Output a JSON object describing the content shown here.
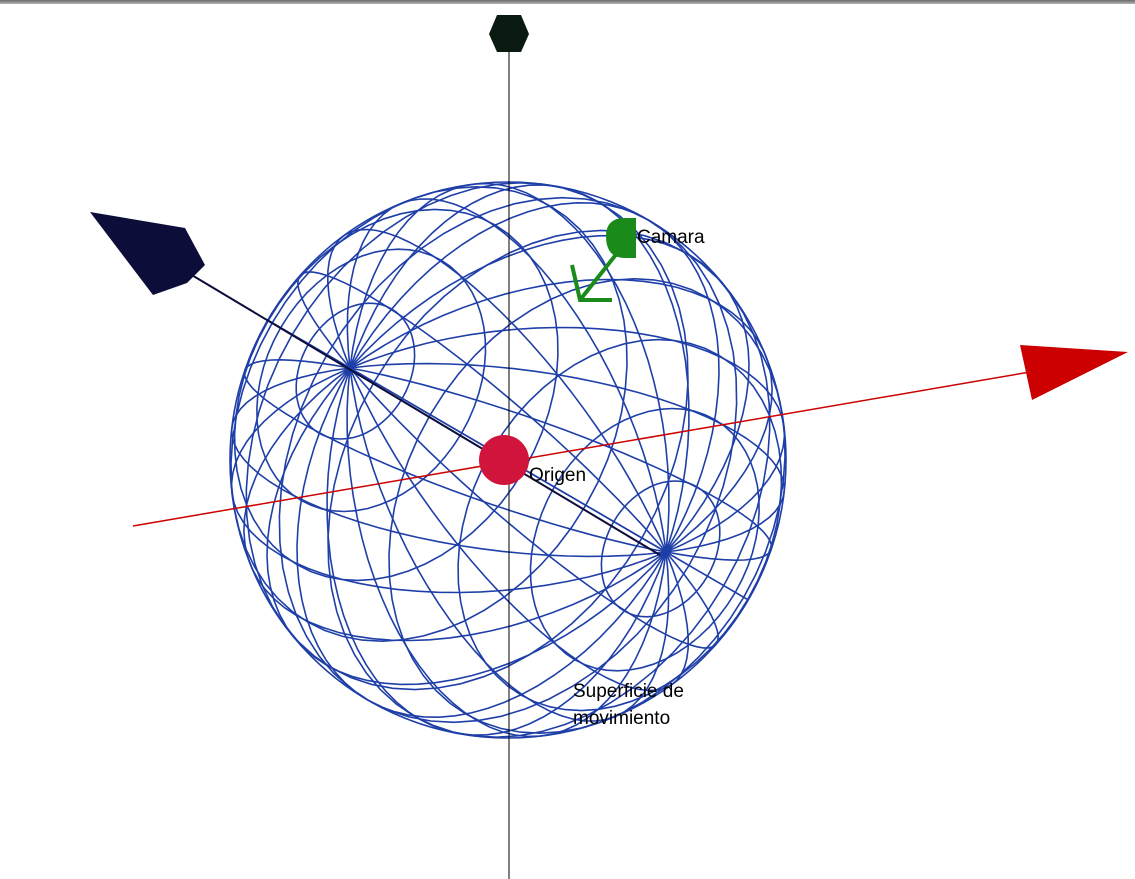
{
  "labels": {
    "camera": "Camara",
    "origin": "Origen",
    "surface_line1": "Superficie de",
    "surface_line2": "movimiento"
  },
  "colors": {
    "background": "#ffffff",
    "sphere_wire": "#1f3fa8",
    "x_axis": "#cc0000",
    "y_axis": "#000000",
    "z_axis": "#0d0d3a",
    "up_arrow_head": "#0a1a10",
    "origin_marker": "#d0143c",
    "camera": "#1a8a1a"
  },
  "icons": {
    "origin": "origin-dot",
    "camera": "camera-marker"
  }
}
